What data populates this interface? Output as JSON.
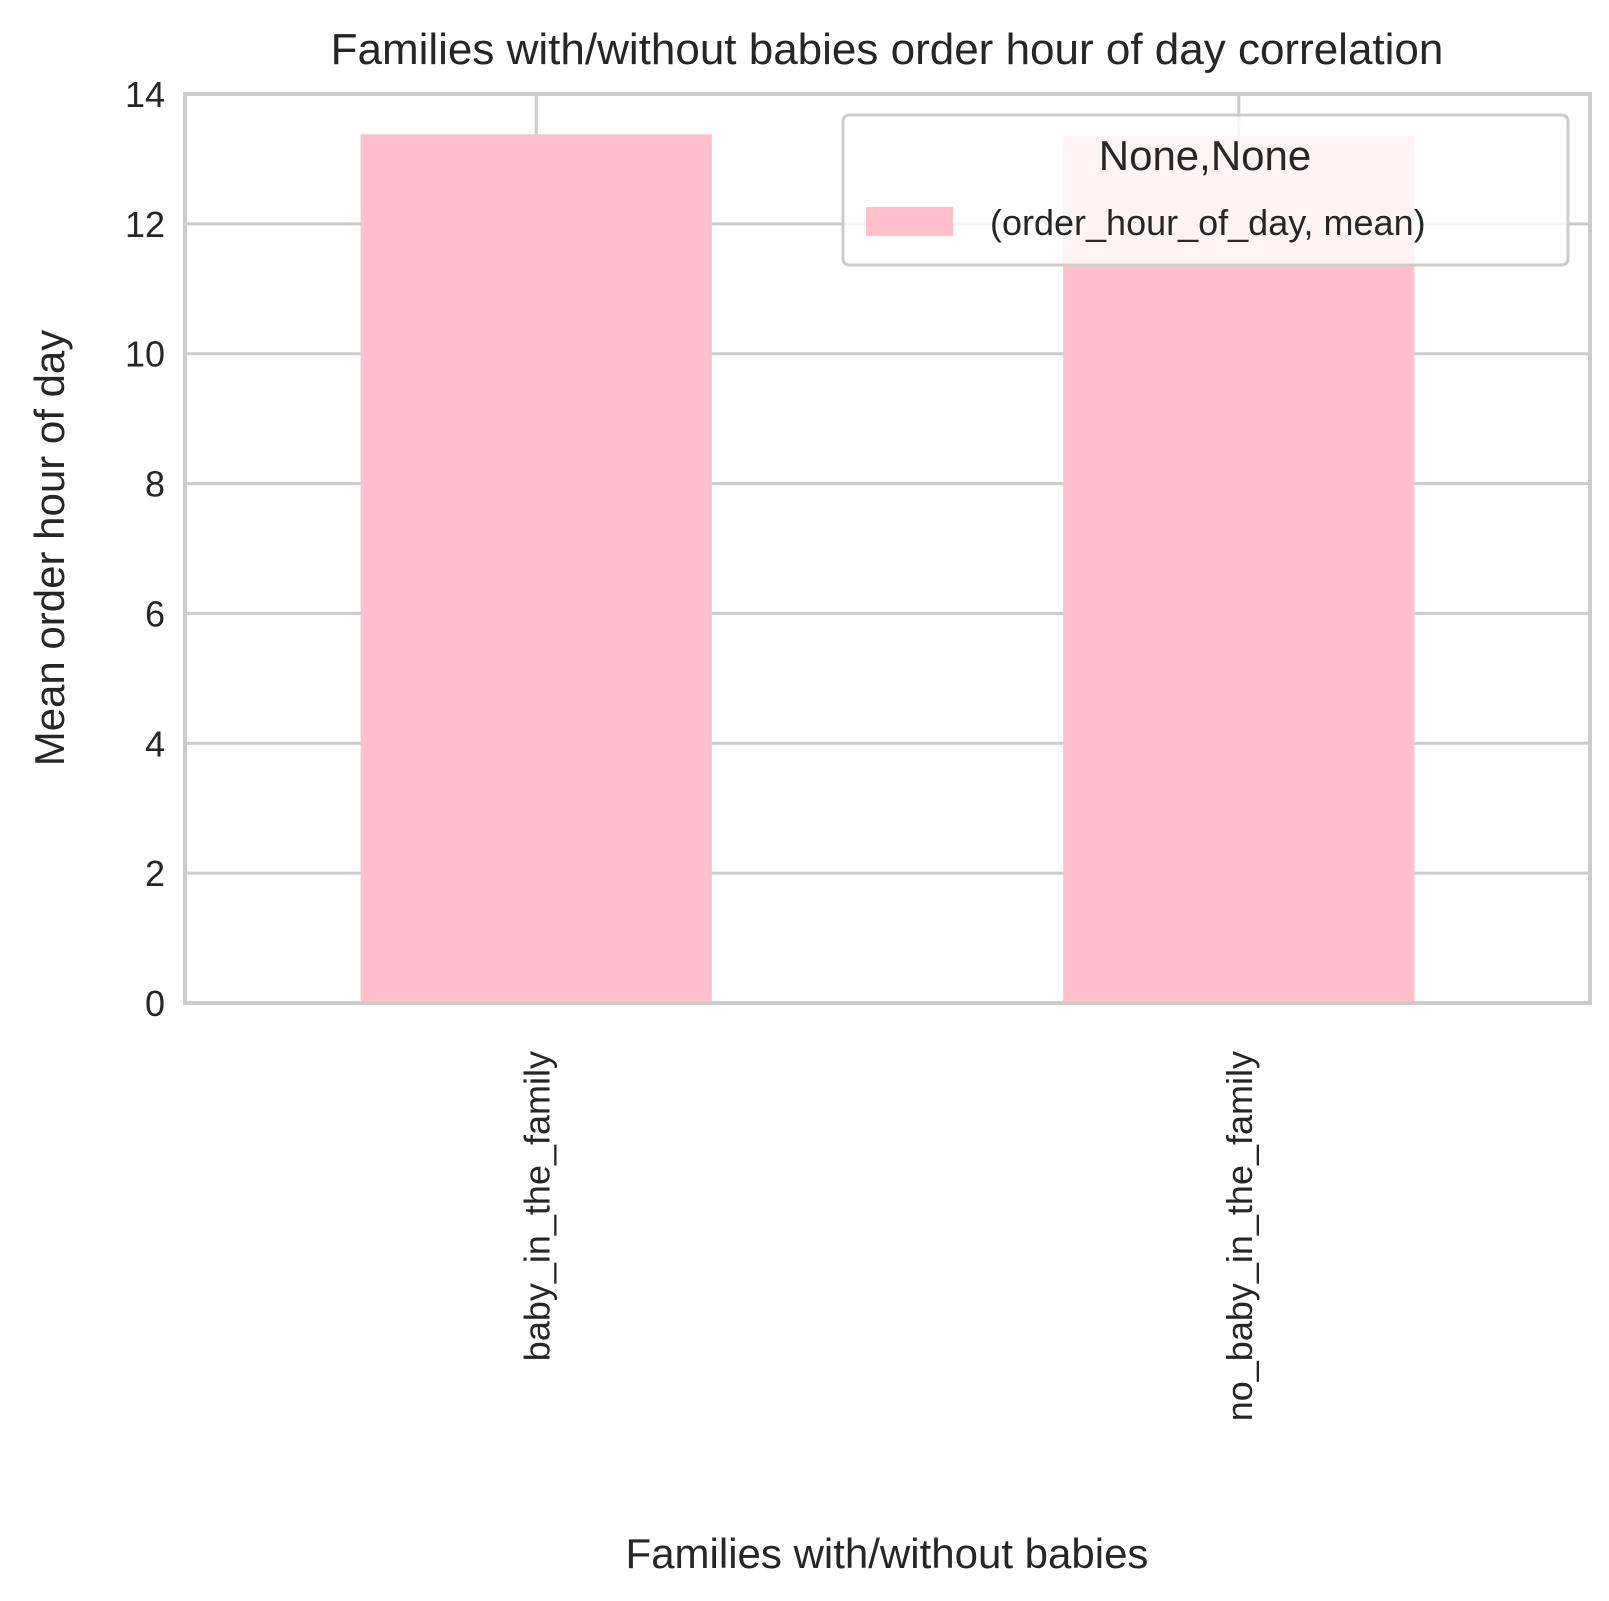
{
  "chart_data": {
    "type": "bar",
    "title": "Families with/without babies order hour of day correlation",
    "xlabel": "Families with/without babies",
    "ylabel": "Mean order hour of day",
    "categories": [
      "baby_in_the_family",
      "no_baby_in_the_family"
    ],
    "series": [
      {
        "name": "(order_hour_of_day, mean)",
        "values": [
          13.38,
          13.35
        ],
        "color": "#ffc0cb"
      }
    ],
    "ylim": [
      0,
      14
    ],
    "yticks": [
      0,
      2,
      4,
      6,
      8,
      10,
      12,
      14
    ],
    "ytick_labels": [
      "0",
      "2",
      "4",
      "6",
      "8",
      "10",
      "12",
      "14"
    ],
    "grid": true,
    "legend": {
      "title": "None,None",
      "placement": "top-right"
    }
  },
  "colors": {
    "grid": "#cccccc",
    "text": "#262626",
    "bar": "#ffc0cb"
  }
}
